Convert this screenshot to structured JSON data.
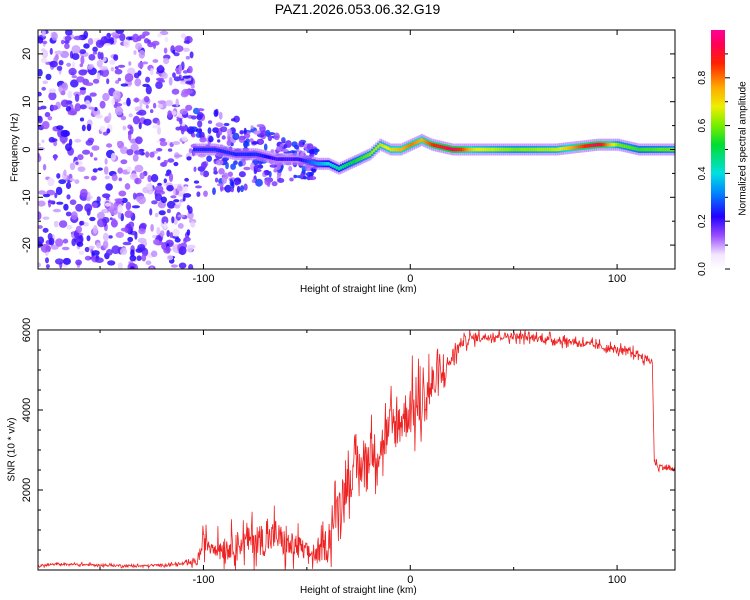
{
  "title": "PAZ1.2026.053.06.32.G19",
  "chart_data": [
    {
      "type": "heatmap",
      "xlabel": "Height of straight line (km)",
      "ylabel": "Frequency (Hz)",
      "xlim": [
        -180,
        128
      ],
      "ylim": [
        -25,
        25
      ],
      "xticks": [
        -100,
        0,
        100
      ],
      "yticks": [
        -20,
        -10,
        0,
        10,
        20
      ],
      "colorbar": {
        "label": "Normalized spectral amplitude",
        "range": [
          0,
          1
        ],
        "ticks": [
          "0.0",
          "0.2",
          "0.4",
          "0.6",
          "0.8"
        ]
      },
      "ridge": {
        "x": [
          -105,
          -95,
          -85,
          -75,
          -65,
          -55,
          -45,
          -40,
          -35,
          -30,
          -25,
          -20,
          -15,
          -10,
          -5,
          0,
          5,
          10,
          20,
          30,
          50,
          70,
          90,
          100,
          110,
          128
        ],
        "freq": [
          0,
          0,
          -1,
          -1,
          -2,
          -2,
          -3,
          -3,
          -4,
          -3,
          -2,
          -1,
          1,
          0,
          0,
          1,
          2,
          1,
          0,
          0,
          0,
          0,
          1,
          1,
          0,
          0
        ],
        "amplitude": [
          0.25,
          0.25,
          0.25,
          0.25,
          0.2,
          0.2,
          0.35,
          0.4,
          0.45,
          0.5,
          0.55,
          0.6,
          0.65,
          0.7,
          0.75,
          0.8,
          0.75,
          0.85,
          0.95,
          0.7,
          0.6,
          0.65,
          0.95,
          0.6,
          0.55,
          0.6
        ]
      }
    },
    {
      "type": "line",
      "xlabel": "Height of straight line (km)",
      "ylabel": "SNR (10 * v/v)",
      "xlim": [
        -180,
        128
      ],
      "ylim": [
        0,
        6000
      ],
      "xticks": [
        -100,
        0,
        100
      ],
      "yticks": [
        2000,
        4000,
        6000
      ],
      "series": [
        {
          "name": "SNR",
          "color": "#ee2222",
          "x": [
            -180,
            -170,
            -150,
            -130,
            -110,
            -103,
            -100,
            -95,
            -90,
            -85,
            -80,
            -75,
            -70,
            -65,
            -60,
            -55,
            -50,
            -45,
            -40,
            -35,
            -30,
            -25,
            -20,
            -15,
            -10,
            -5,
            0,
            5,
            10,
            15,
            20,
            25,
            30,
            40,
            50,
            60,
            70,
            80,
            90,
            100,
            110,
            115,
            117,
            118,
            120,
            128
          ],
          "y": [
            100,
            150,
            120,
            100,
            150,
            200,
            700,
            600,
            550,
            650,
            700,
            800,
            700,
            900,
            600,
            600,
            450,
            350,
            700,
            1600,
            2200,
            2500,
            2900,
            3000,
            3500,
            3700,
            4000,
            4100,
            4600,
            4800,
            5300,
            5700,
            5800,
            5850,
            5850,
            5800,
            5750,
            5700,
            5600,
            5500,
            5400,
            5250,
            5200,
            2700,
            2600,
            2500
          ],
          "noise": [
            60,
            60,
            60,
            60,
            60,
            200,
            500,
            500,
            600,
            700,
            700,
            900,
            800,
            900,
            800,
            700,
            500,
            400,
            1000,
            1000,
            1000,
            1100,
            1100,
            1100,
            1300,
            1300,
            1400,
            1300,
            1400,
            700,
            500,
            300,
            250,
            200,
            200,
            200,
            200,
            200,
            200,
            200,
            200,
            200,
            200,
            150,
            150,
            150
          ]
        }
      ]
    }
  ]
}
